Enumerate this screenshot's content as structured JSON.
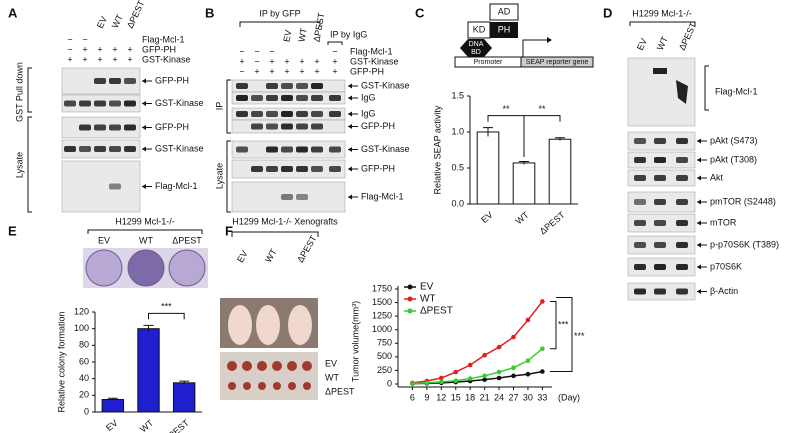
{
  "panel_a": {
    "label": "A",
    "columns": [
      "EV",
      "WT",
      "ΔPEST"
    ],
    "rows": [
      {
        "name": "Flag-Mcl-1",
        "signs": [
          "−",
          "−"
        ]
      },
      {
        "name": "GFP-PH",
        "signs": [
          "−",
          "+",
          "+",
          "+",
          "+"
        ]
      },
      {
        "name": "GST-Kinase",
        "signs": [
          "+",
          "+",
          "+",
          "+",
          "+"
        ]
      }
    ],
    "sections": [
      "GST Pull down",
      "Lysate"
    ],
    "bands": [
      "GFP-PH",
      "GST-Kinase",
      "GFP-PH",
      "GST-Kinase",
      "Flag-Mcl-1"
    ]
  },
  "panel_b": {
    "label": "B",
    "ip_gfp": "IP by GFP",
    "ip_igg": "IP by IgG",
    "columns": [
      "EV",
      "WT",
      "ΔPEST"
    ],
    "rows": [
      {
        "name": "Flag-Mcl-1",
        "signs": [
          "−",
          "−",
          "−",
          "",
          "",
          "",
          "−"
        ]
      },
      {
        "name": "GST-Kinase",
        "signs": [
          "+",
          "−",
          "+",
          "+",
          "+",
          "+",
          "+"
        ]
      },
      {
        "name": "GFP-PH",
        "signs": [
          "−",
          "+",
          "+",
          "+",
          "+",
          "+",
          "+"
        ]
      }
    ],
    "sections": [
      "IP",
      "Lysate"
    ],
    "bands": [
      "GST-Kinase",
      "IgG",
      "IgG",
      "GFP-PH",
      "GST-Kinase",
      "GFP-PH",
      "Flag-Mcl-1"
    ]
  },
  "panel_c": {
    "label": "C",
    "diagram": {
      "ad": "AD",
      "kd": "KD",
      "ph": "PH",
      "dna_bd": [
        "DNA",
        "BD"
      ],
      "promoter": "Promoter",
      "reporter": "SEAP reporter gene"
    }
  },
  "panel_d": {
    "label": "D",
    "title": "H1299 Mcl-1-/-",
    "columns": [
      "EV",
      "WT",
      "ΔPEST"
    ],
    "bands": [
      "Flag-Mcl-1",
      "pAkt (S473)",
      "pAkt (T308)",
      "Akt",
      "pmTOR (S2448)",
      "mTOR",
      "p-p70S6K (T389)",
      "p70S6K",
      "β-Actin"
    ]
  },
  "panel_e": {
    "label": "E",
    "title": "H1299 Mcl-1-/-",
    "plates": [
      "EV",
      "WT",
      "ΔPEST"
    ]
  },
  "panel_f": {
    "label": "F",
    "title": "H1299 Mcl-1-/- Xenografts",
    "columns": [
      "EV",
      "WT",
      "ΔPEST"
    ],
    "tumor_rows": [
      "EV",
      "WT",
      "ΔPEST"
    ]
  },
  "chart_data": [
    {
      "type": "bar",
      "ylabel": "Relative SEAP activity",
      "categories": [
        "EV",
        "WT",
        "ΔPEST"
      ],
      "values": [
        1.0,
        0.57,
        0.9
      ],
      "errors": [
        0.06,
        0.02,
        0.02
      ],
      "color": "#ffffff",
      "ylim": [
        0,
        1.5
      ],
      "yticks": [
        {
          "value": 0,
          "label": "0.0"
        },
        {
          "value": 0.5,
          "label": "0.5"
        },
        {
          "value": 1,
          "label": "1.0"
        },
        {
          "value": 1.5,
          "label": "1.5"
        }
      ],
      "annotations": [
        "**",
        "**"
      ]
    },
    {
      "type": "bar",
      "ylabel": "Relative colony formation",
      "categories": [
        "EV",
        "WT",
        "ΔPEST"
      ],
      "values": [
        15,
        100,
        35
      ],
      "errors": [
        1.5,
        4,
        2
      ],
      "color": "#1f1fd0",
      "ylim": [
        0,
        120
      ],
      "yticks": [
        0,
        20,
        40,
        60,
        80,
        100,
        120
      ],
      "annotations": [
        "***"
      ]
    },
    {
      "type": "line",
      "ylabel": "Tumor volume(mm³)",
      "xlabel": "(Day)",
      "x": [
        6,
        9,
        12,
        15,
        18,
        21,
        24,
        27,
        30,
        33
      ],
      "series": [
        {
          "name": "EV",
          "color": "#111111",
          "values": [
            8,
            12,
            20,
            35,
            55,
            80,
            110,
            150,
            180,
            230
          ]
        },
        {
          "name": "WT",
          "color": "#e02020",
          "values": [
            20,
            55,
            110,
            220,
            350,
            530,
            680,
            865,
            1180,
            1520
          ]
        },
        {
          "name": "ΔPEST",
          "color": "#33cc33",
          "values": [
            10,
            20,
            40,
            60,
            100,
            150,
            220,
            300,
            430,
            650
          ]
        }
      ],
      "xlim": [
        3,
        35
      ],
      "xticks": [
        6,
        9,
        12,
        15,
        18,
        21,
        24,
        27,
        30,
        33
      ],
      "ylim": [
        0,
        1750
      ],
      "yticks": [
        0,
        250,
        500,
        750,
        1000,
        1250,
        1500,
        1750
      ],
      "annotations": [
        "***",
        "***"
      ]
    }
  ]
}
